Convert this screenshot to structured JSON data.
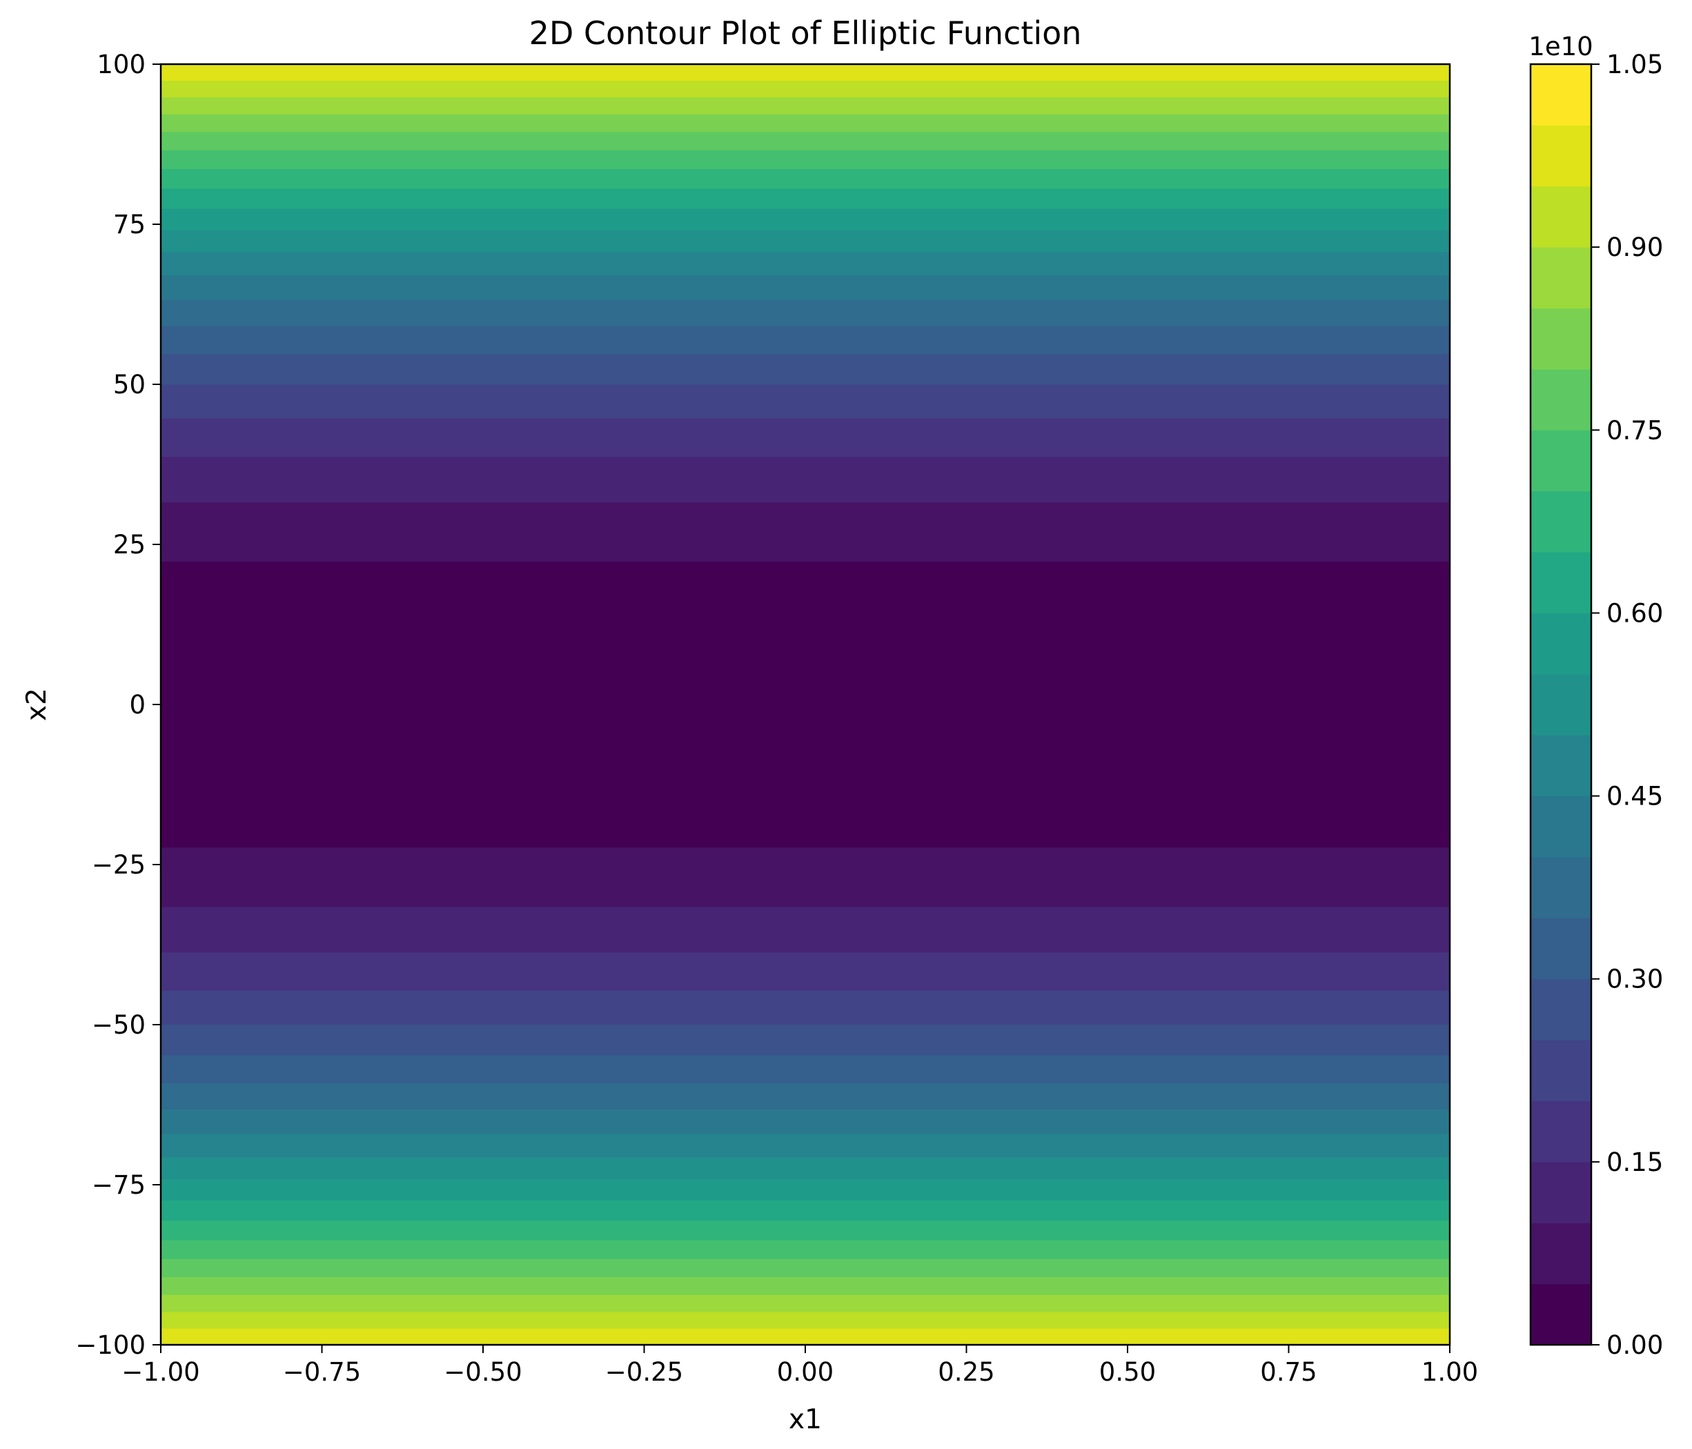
{
  "chart_data": {
    "type": "heatmap",
    "subtype": "filled-contour",
    "title": "2D Contour Plot of Elliptic Function",
    "xlabel": "x1",
    "ylabel": "x2",
    "xlim": [
      -1.0,
      1.0
    ],
    "ylim": [
      -100,
      100
    ],
    "x_ticks": [
      -1.0,
      -0.75,
      -0.5,
      -0.25,
      0.0,
      0.25,
      0.5,
      0.75,
      1.0
    ],
    "x_tick_labels": [
      "−1.00",
      "−0.75",
      "−0.50",
      "−0.25",
      "0.00",
      "0.25",
      "0.50",
      "0.75",
      "1.00"
    ],
    "y_ticks": [
      -100,
      -75,
      -50,
      -25,
      0,
      25,
      50,
      75,
      100
    ],
    "y_tick_labels": [
      "−100",
      "−75",
      "−50",
      "−25",
      "0",
      "25",
      "50",
      "75",
      "100"
    ],
    "colorbar": {
      "offset_text": "1e10",
      "range": [
        0.0,
        1.05
      ],
      "ticks": [
        0.0,
        0.15,
        0.3,
        0.45,
        0.6,
        0.75,
        0.9,
        1.05
      ],
      "tick_labels": [
        "0.00",
        "0.15",
        "0.30",
        "0.45",
        "0.60",
        "0.75",
        "0.90",
        "1.05"
      ],
      "levels": [
        0.0,
        0.05,
        0.1,
        0.15,
        0.2,
        0.25,
        0.3,
        0.35,
        0.4,
        0.45,
        0.5,
        0.55,
        0.6,
        0.65,
        0.7,
        0.75,
        0.8,
        0.85,
        0.9,
        0.95,
        1.0,
        1.05
      ],
      "colormap": "viridis",
      "level_colors": [
        "#440154",
        "#471365",
        "#482475",
        "#463480",
        "#414487",
        "#3b528b",
        "#355f8d",
        "#2f6c8e",
        "#2a788e",
        "#25848e",
        "#21918c",
        "#1e9c89",
        "#22a884",
        "#2fb47c",
        "#44bf70",
        "#5ec962",
        "#7ad151",
        "#9bd93c",
        "#bddf26",
        "#dfe318",
        "#fde725"
      ]
    },
    "function_model": {
      "depends_on": "x2",
      "value_scale_1e10_at_x2_abs_100": 1.0,
      "exponent": 2
    },
    "grid": false
  }
}
